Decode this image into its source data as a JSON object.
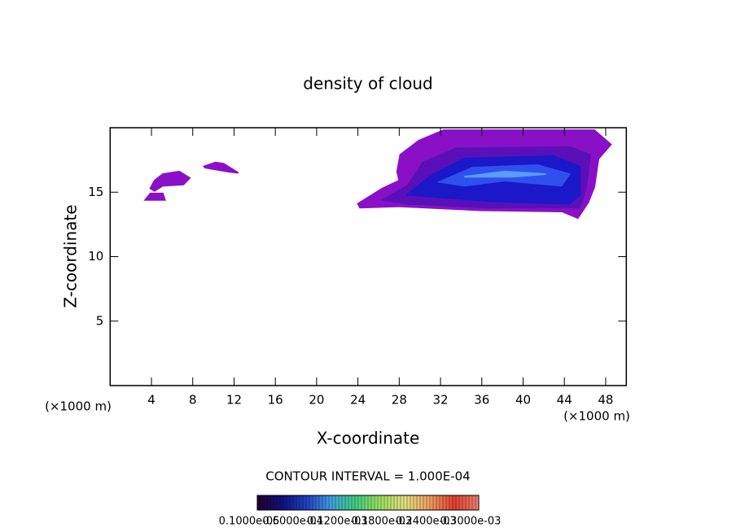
{
  "chart_data": {
    "type": "contour",
    "title": "density of cloud",
    "x_label": "X-coordinate",
    "y_label": "Z-coordinate",
    "x_unit": "(×1000 m)",
    "y_unit": "(×1000 m)",
    "xlim": [
      0,
      50
    ],
    "ylim": [
      0,
      20
    ],
    "xticks": [
      4,
      8,
      12,
      16,
      20,
      24,
      28,
      32,
      36,
      40,
      44,
      48
    ],
    "yticks": [
      5,
      10,
      15
    ],
    "regions": [
      {
        "color": "#8a10c8",
        "x": [
          24.0,
          26.4,
          28.0,
          27.8,
          28.1,
          29.9,
          32.3,
          46.9,
          48.5,
          47.3,
          46.9,
          46.3,
          45.3,
          43.8,
          35.9,
          28.0,
          24.2
        ],
        "y": [
          14.1,
          15.3,
          15.9,
          16.6,
          17.9,
          19.0,
          19.8,
          19.8,
          18.7,
          17.6,
          15.4,
          14.2,
          13.0,
          13.5,
          13.6,
          13.9,
          13.8
        ]
      },
      {
        "color": "#5a10b8",
        "x": [
          26.4,
          28.8,
          30.3,
          33.5,
          44.5,
          46.5,
          46.1,
          45.5,
          36.7,
          28.8
        ],
        "y": [
          14.4,
          15.5,
          17.3,
          18.4,
          18.5,
          17.9,
          15.4,
          13.8,
          13.8,
          14.1
        ]
      },
      {
        "color": "#1a18c8",
        "x": [
          28.8,
          31.1,
          34.3,
          42.9,
          45.5,
          45.5,
          44.5,
          36.7
        ],
        "y": [
          14.8,
          16.3,
          17.6,
          17.8,
          17.0,
          14.8,
          14.1,
          14.3
        ]
      },
      {
        "color": "#2f50ee",
        "x": [
          31.9,
          35.1,
          41.4,
          44.5,
          43.7,
          38.2,
          34.3
        ],
        "y": [
          15.8,
          16.9,
          17.1,
          16.4,
          15.5,
          15.9,
          15.5
        ]
      },
      {
        "color": "#5a9cff",
        "x": [
          34.3,
          38.2,
          42.2,
          39.0
        ],
        "y": [
          16.2,
          16.6,
          16.4,
          16.2
        ]
      },
      {
        "color": "#8a10c8",
        "x": [
          3.9,
          4.3,
          5.1,
          6.7,
          7.7,
          7.1,
          5.1,
          4.3
        ],
        "y": [
          15.3,
          15.9,
          16.4,
          16.6,
          16.1,
          15.6,
          15.5,
          15.1
        ]
      },
      {
        "color": "#8a10c8",
        "x": [
          3.4,
          3.9,
          5.1,
          5.3
        ],
        "y": [
          14.4,
          14.9,
          14.9,
          14.4
        ]
      },
      {
        "color": "#8a10c8",
        "x": [
          9.1,
          10.2,
          11.0,
          12.4,
          11.4,
          9.2
        ],
        "y": [
          17.0,
          17.3,
          17.2,
          16.5,
          16.6,
          16.9
        ]
      }
    ],
    "contour_interval": "CONTOUR INTERVAL = 1.000E-04",
    "colormap": [
      "#200030",
      "#101080",
      "#2040c0",
      "#40a0e0",
      "#40d080",
      "#a0e060",
      "#e0e080",
      "#f0a060",
      "#e04030",
      "#f08070"
    ],
    "clim": [
      1e-06,
      0.0003
    ],
    "cticks": [
      {
        "value": 1e-06,
        "label": "0.1000e-05"
      },
      {
        "value": 6e-05,
        "label": "0.6000e-04"
      },
      {
        "value": 0.00012,
        "label": "0.1200e-03"
      },
      {
        "value": 0.00018,
        "label": "0.1800e-03"
      },
      {
        "value": 0.00024,
        "label": "0.2400e-03"
      },
      {
        "value": 0.0003,
        "label": "0.3000e-03"
      }
    ]
  }
}
